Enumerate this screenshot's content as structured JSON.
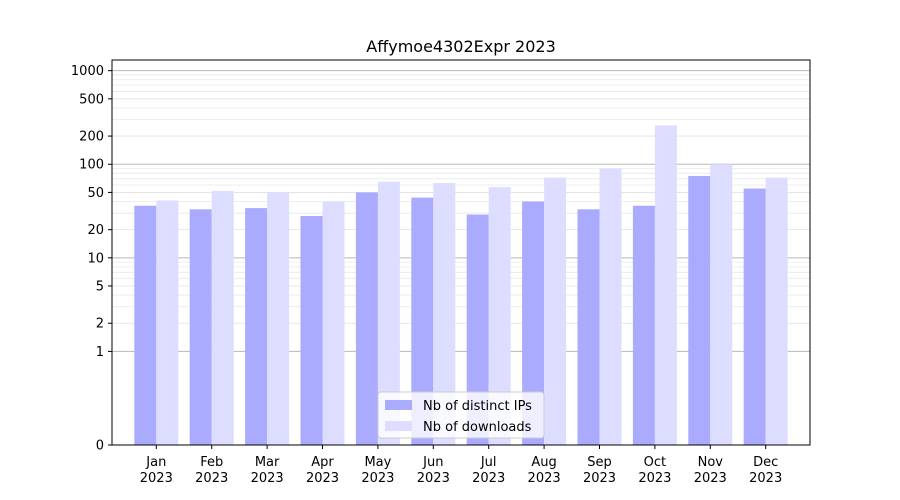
{
  "chart_data": {
    "type": "bar",
    "title": "Affymoe4302Expr 2023",
    "xlabel": "",
    "ylabel": "",
    "scale": "symlog",
    "categories": [
      {
        "month": "Jan",
        "year": "2023"
      },
      {
        "month": "Feb",
        "year": "2023"
      },
      {
        "month": "Mar",
        "year": "2023"
      },
      {
        "month": "Apr",
        "year": "2023"
      },
      {
        "month": "May",
        "year": "2023"
      },
      {
        "month": "Jun",
        "year": "2023"
      },
      {
        "month": "Jul",
        "year": "2023"
      },
      {
        "month": "Aug",
        "year": "2023"
      },
      {
        "month": "Sep",
        "year": "2023"
      },
      {
        "month": "Oct",
        "year": "2023"
      },
      {
        "month": "Nov",
        "year": "2023"
      },
      {
        "month": "Dec",
        "year": "2023"
      }
    ],
    "series": [
      {
        "name": "Nb of distinct IPs",
        "color": "#aaaaff",
        "values": [
          36,
          33,
          34,
          28,
          50,
          44,
          29,
          40,
          33,
          36,
          75,
          55
        ]
      },
      {
        "name": "Nb of downloads",
        "color": "#ddddff",
        "values": [
          41,
          52,
          50,
          40,
          65,
          63,
          57,
          72,
          90,
          260,
          100,
          72
        ]
      }
    ],
    "yticks": [
      0,
      1,
      2,
      5,
      10,
      20,
      50,
      100,
      200,
      500,
      1000
    ],
    "ylim": [
      0,
      1300
    ],
    "grid": true,
    "legend_position": "lower-center"
  }
}
